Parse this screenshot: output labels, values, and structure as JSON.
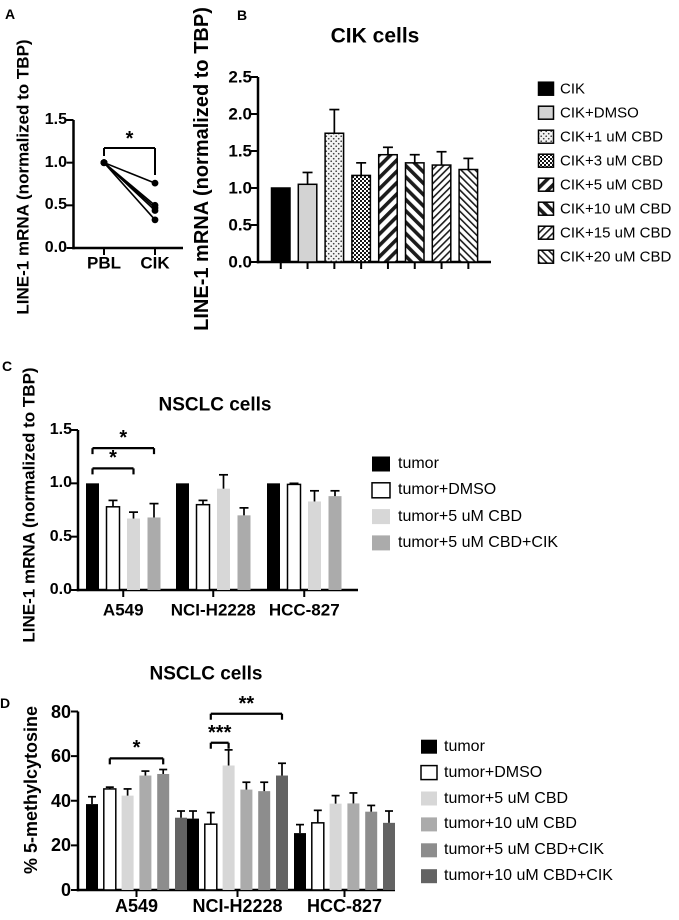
{
  "colors": {
    "ink": "#000000",
    "black": "#000000",
    "white": "#ffffff",
    "light_gray_b": "#d3d3d3",
    "gray_light": "#d7d7d7",
    "gray_mid": "#ababab",
    "gray_dark": "#8d8d8d",
    "gray_darker": "#636363",
    "dots_bg": "#f2f2f2"
  },
  "chart_data": [
    {
      "panel": "A",
      "type": "line",
      "title": "",
      "ylabel": "LINE-1 mRNA (normalized to TBP)",
      "xlabel": "",
      "categories": [
        "PBL",
        "CIK"
      ],
      "yticks": [
        "0.0",
        "0.5",
        "1.0",
        "1.5"
      ],
      "ylim": [
        0,
        1.5
      ],
      "pairs": [
        [
          1.0,
          0.76
        ],
        [
          1.0,
          0.5
        ],
        [
          1.0,
          0.47
        ],
        [
          1.0,
          0.44
        ],
        [
          1.0,
          0.33
        ]
      ],
      "significance": [
        {
          "label": "*",
          "from": "PBL",
          "to": "CIK"
        }
      ],
      "grid": "off",
      "legend_position": "none"
    },
    {
      "panel": "B",
      "type": "bar",
      "title": "CIK cells",
      "ylabel": "LINE-1 mRNA (normalized to TBP)",
      "xlabel": "",
      "yticks": [
        "0.0",
        "0.5",
        "1.0",
        "1.5",
        "2.0",
        "2.5"
      ],
      "ylim": [
        0,
        2.5
      ],
      "series": [
        {
          "label": "CIK",
          "fill": "black",
          "value": 1.0,
          "error": 0
        },
        {
          "label": "CIK+DMSO",
          "fill": "light_gray_b",
          "value": 1.05,
          "error": 0.16
        },
        {
          "label": "CIK+1 uM CBD",
          "fill": "dots",
          "value": 1.74,
          "error": 0.32
        },
        {
          "label": "CIK+3 uM CBD",
          "fill": "checker",
          "value": 1.17,
          "error": 0.17
        },
        {
          "label": "CIK+5 uM CBD",
          "fill": "stripe_wide_up",
          "value": 1.45,
          "error": 0.1
        },
        {
          "label": "CIK+10 uM CBD",
          "fill": "stripe_wide_down",
          "value": 1.34,
          "error": 0.11
        },
        {
          "label": "CIK+15 uM CBD",
          "fill": "stripe_thin_up",
          "value": 1.31,
          "error": 0.18
        },
        {
          "label": "CIK+20 uM CBD",
          "fill": "stripe_thin_down",
          "value": 1.25,
          "error": 0.15
        }
      ],
      "grid": "off",
      "legend_position": "right"
    },
    {
      "panel": "C",
      "type": "bar",
      "title": "NSCLC cells",
      "ylabel": "LINE-1 mRNA (normalized to TBP)",
      "xlabel": "",
      "categories": [
        "A549",
        "NCI-H2228",
        "HCC-827"
      ],
      "yticks": [
        "0.0",
        "0.5",
        "1.0",
        "1.5"
      ],
      "ylim": [
        0,
        1.5
      ],
      "series": [
        {
          "label": "tumor",
          "fill": "black",
          "values": [
            1.0,
            1.0,
            1.0
          ],
          "errors": [
            0,
            0,
            0
          ]
        },
        {
          "label": "tumor+DMSO",
          "fill": "white",
          "values": [
            0.78,
            0.8,
            0.99
          ],
          "errors": [
            0.06,
            0.04,
            0.01
          ]
        },
        {
          "label": "tumor+5 uM CBD",
          "fill": "gray_light",
          "values": [
            0.67,
            0.95,
            0.83
          ],
          "errors": [
            0.06,
            0.13,
            0.1
          ]
        },
        {
          "label": "tumor+5 uM CBD+CIK",
          "fill": "gray_mid",
          "values": [
            0.68,
            0.7,
            0.88
          ],
          "errors": [
            0.13,
            0.07,
            0.05
          ]
        }
      ],
      "significance": [
        {
          "label": "*",
          "group": "A549",
          "from_series": 0,
          "to_series": 3,
          "y": 1.33
        },
        {
          "label": "*",
          "group": "A549",
          "from_series": 0,
          "to_series": 2,
          "y": 1.14
        }
      ],
      "grid": "off",
      "legend_position": "right"
    },
    {
      "panel": "D",
      "type": "bar",
      "title": "NSCLC cells",
      "ylabel": "% 5-methylcytosine",
      "xlabel": "",
      "categories": [
        "A549",
        "NCI-H2228",
        "HCC-827"
      ],
      "yticks": [
        "0",
        "20",
        "40",
        "60",
        "80"
      ],
      "ylim": [
        0,
        80
      ],
      "series": [
        {
          "label": "tumor",
          "fill": "black",
          "values": [
            38.5,
            32.0,
            25.5
          ],
          "errors": [
            3.3,
            3.4,
            3.8
          ]
        },
        {
          "label": "tumor+DMSO",
          "fill": "white",
          "values": [
            45.3,
            29.5,
            30.1
          ],
          "errors": [
            0.8,
            5.2,
            5.6
          ]
        },
        {
          "label": "tumor+5 uM CBD",
          "fill": "gray_light",
          "values": [
            42.3,
            55.8,
            38.7
          ],
          "errors": [
            3.0,
            7.0,
            3.6
          ]
        },
        {
          "label": "tumor+10 uM CBD",
          "fill": "gray_mid",
          "values": [
            51.3,
            45.0,
            38.8
          ],
          "errors": [
            2.0,
            3.3,
            4.7
          ]
        },
        {
          "label": "tumor+5 uM CBD+CIK",
          "fill": "gray_dark",
          "values": [
            52.0,
            44.3,
            35.1
          ],
          "errors": [
            2.0,
            4.0,
            2.8
          ]
        },
        {
          "label": "tumor+10 uM CBD+CIK",
          "fill": "gray_darker",
          "values": [
            32.4,
            51.3,
            30.1
          ],
          "errors": [
            3.0,
            5.5,
            5.3
          ]
        }
      ],
      "significance": [
        {
          "label": "*",
          "group": "A549",
          "from_series": 1,
          "to_series": 4,
          "y": 59
        },
        {
          "label": "***",
          "group": "NCI-H2228",
          "from_series": 1,
          "to_series": 2,
          "y": 66
        },
        {
          "label": "**",
          "group": "NCI-H2228",
          "from_series": 1,
          "to_series": 5,
          "y": 79
        }
      ],
      "grid": "off",
      "legend_position": "right"
    }
  ]
}
